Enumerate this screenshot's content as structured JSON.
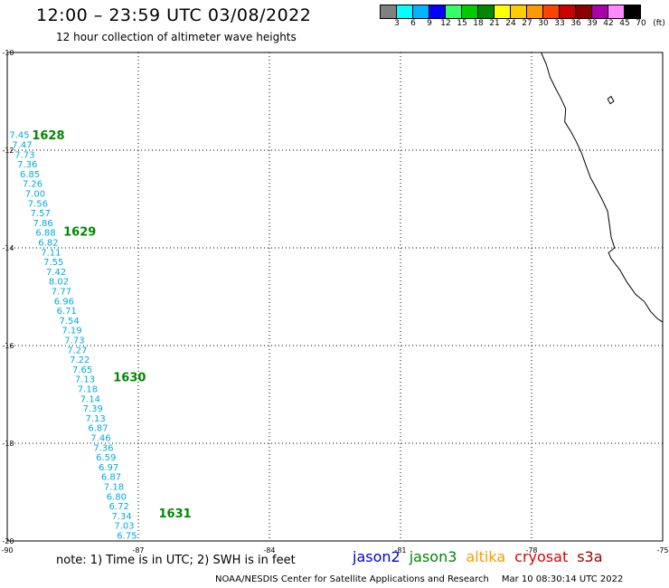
{
  "header": {
    "title": "12:00 – 23:59 UTC 03/08/2022",
    "subtitle": "12 hour collection of altimeter wave heights"
  },
  "legend": {
    "unit": "(ft)",
    "colors": [
      "#808080",
      "#00ffff",
      "#00b4ff",
      "#0000ff",
      "#33ff66",
      "#00cc00",
      "#008800",
      "#ffff00",
      "#ffcc00",
      "#ff9900",
      "#ff4400",
      "#cc0000",
      "#880000",
      "#aa00aa",
      "#ff88ff",
      "#000000"
    ],
    "labels": [
      "3",
      "6",
      "9",
      "12",
      "15",
      "18",
      "21",
      "24",
      "27",
      "30",
      "33",
      "36",
      "39",
      "42",
      "45",
      "70"
    ]
  },
  "map": {
    "x_ticks": [
      "-90",
      "-87",
      "-84",
      "-81",
      "-78",
      "-75"
    ],
    "y_ticks": [
      "-10",
      "-12",
      "-14",
      "-16",
      "-18",
      "-20"
    ],
    "lon_range": [
      -90,
      -75
    ],
    "lat_range": [
      -20,
      -10
    ],
    "track_color": "#00aadd",
    "pass_color": "#008800",
    "track": [
      {
        "lat": -11.68,
        "lon": -89.72,
        "swh": "7.45"
      },
      {
        "lat": -11.88,
        "lon": -89.66,
        "swh": "7.47"
      },
      {
        "lat": -12.08,
        "lon": -89.6,
        "swh": "7.73"
      },
      {
        "lat": -12.28,
        "lon": -89.54,
        "swh": "7.36"
      },
      {
        "lat": -12.48,
        "lon": -89.48,
        "swh": "6.85"
      },
      {
        "lat": -12.68,
        "lon": -89.42,
        "swh": "7.26"
      },
      {
        "lat": -12.88,
        "lon": -89.36,
        "swh": "7.00"
      },
      {
        "lat": -13.08,
        "lon": -89.3,
        "swh": "7.56"
      },
      {
        "lat": -13.28,
        "lon": -89.24,
        "swh": "7.57"
      },
      {
        "lat": -13.48,
        "lon": -89.18,
        "swh": "7.86"
      },
      {
        "lat": -13.68,
        "lon": -89.12,
        "swh": "6.88"
      },
      {
        "lat": -13.88,
        "lon": -89.06,
        "swh": "6.82"
      },
      {
        "lat": -14.08,
        "lon": -89.0,
        "swh": "7.11"
      },
      {
        "lat": -14.28,
        "lon": -88.94,
        "swh": "7.55"
      },
      {
        "lat": -14.48,
        "lon": -88.88,
        "swh": "7.42"
      },
      {
        "lat": -14.68,
        "lon": -88.82,
        "swh": "8.02"
      },
      {
        "lat": -14.88,
        "lon": -88.76,
        "swh": "7.77"
      },
      {
        "lat": -15.08,
        "lon": -88.7,
        "swh": "6.96"
      },
      {
        "lat": -15.28,
        "lon": -88.64,
        "swh": "6.71"
      },
      {
        "lat": -15.48,
        "lon": -88.58,
        "swh": "7.54"
      },
      {
        "lat": -15.68,
        "lon": -88.52,
        "swh": "7.19"
      },
      {
        "lat": -15.88,
        "lon": -88.46,
        "swh": "7.73"
      },
      {
        "lat": -16.08,
        "lon": -88.4,
        "swh": "7.27"
      },
      {
        "lat": -16.28,
        "lon": -88.34,
        "swh": "7.22"
      },
      {
        "lat": -16.48,
        "lon": -88.28,
        "swh": "7.65"
      },
      {
        "lat": -16.68,
        "lon": -88.22,
        "swh": "7.13"
      },
      {
        "lat": -16.88,
        "lon": -88.16,
        "swh": "7.18"
      },
      {
        "lat": -17.08,
        "lon": -88.1,
        "swh": "7.14"
      },
      {
        "lat": -17.28,
        "lon": -88.04,
        "swh": "7.39"
      },
      {
        "lat": -17.48,
        "lon": -87.98,
        "swh": "7.13"
      },
      {
        "lat": -17.68,
        "lon": -87.92,
        "swh": "6.87"
      },
      {
        "lat": -17.88,
        "lon": -87.86,
        "swh": "7.46"
      },
      {
        "lat": -18.08,
        "lon": -87.8,
        "swh": "7.36"
      },
      {
        "lat": -18.28,
        "lon": -87.74,
        "swh": "6.59"
      },
      {
        "lat": -18.48,
        "lon": -87.68,
        "swh": "6.97"
      },
      {
        "lat": -18.68,
        "lon": -87.62,
        "swh": "6.87"
      },
      {
        "lat": -18.88,
        "lon": -87.56,
        "swh": "7.18"
      },
      {
        "lat": -19.08,
        "lon": -87.5,
        "swh": "6.80"
      },
      {
        "lat": -19.28,
        "lon": -87.44,
        "swh": "6.72"
      },
      {
        "lat": -19.48,
        "lon": -87.38,
        "swh": "7.34"
      },
      {
        "lat": -19.68,
        "lon": -87.32,
        "swh": "7.03"
      },
      {
        "lat": -19.88,
        "lon": -87.26,
        "swh": "6.75"
      }
    ],
    "pass_times": [
      {
        "label": "1628",
        "lat": -11.7,
        "lon": -89.06
      },
      {
        "label": "1629",
        "lat": -13.68,
        "lon": -88.34
      },
      {
        "label": "1630",
        "lat": -16.66,
        "lon": -87.2
      },
      {
        "label": "1631",
        "lat": -19.44,
        "lon": -86.16
      }
    ],
    "coastline": [
      [
        -77.78,
        -10.0
      ],
      [
        -77.66,
        -10.25
      ],
      [
        -77.58,
        -10.5
      ],
      [
        -77.46,
        -10.72
      ],
      [
        -77.34,
        -10.92
      ],
      [
        -77.22,
        -11.15
      ],
      [
        -77.24,
        -11.42
      ],
      [
        -77.1,
        -11.62
      ],
      [
        -76.98,
        -11.82
      ],
      [
        -76.86,
        -12.05
      ],
      [
        -76.76,
        -12.3
      ],
      [
        -76.66,
        -12.55
      ],
      [
        -76.52,
        -12.78
      ],
      [
        -76.38,
        -13.02
      ],
      [
        -76.26,
        -13.25
      ],
      [
        -76.22,
        -13.5
      ],
      [
        -76.18,
        -13.78
      ],
      [
        -76.1,
        -14.0
      ],
      [
        -76.24,
        -14.1
      ],
      [
        -76.18,
        -14.22
      ],
      [
        -75.98,
        -14.45
      ],
      [
        -75.82,
        -14.7
      ],
      [
        -75.62,
        -14.95
      ],
      [
        -75.42,
        -15.1
      ],
      [
        -75.28,
        -15.3
      ],
      [
        -75.12,
        -15.45
      ],
      [
        -75.0,
        -15.52
      ]
    ],
    "island": [
      [
        -76.26,
        -10.95
      ],
      [
        -76.18,
        -10.9
      ],
      [
        -76.12,
        -11.0
      ],
      [
        -76.2,
        -11.05
      ],
      [
        -76.26,
        -10.95
      ]
    ]
  },
  "note": "note: 1) Time is in UTC; 2) SWH is in feet",
  "satellites": [
    {
      "name": "jason2",
      "color": "#0000dd"
    },
    {
      "name": "jason3",
      "color": "#008800"
    },
    {
      "name": "altika",
      "color": "#ff9900"
    },
    {
      "name": "cryosat",
      "color": "#dd0000"
    },
    {
      "name": "s3a",
      "color": "#990000"
    }
  ],
  "footer": {
    "credit": "NOAA/NESDIS Center for Satellite Applications and Research",
    "timestamp": "Mar 10 08:30:14 UTC 2022"
  }
}
